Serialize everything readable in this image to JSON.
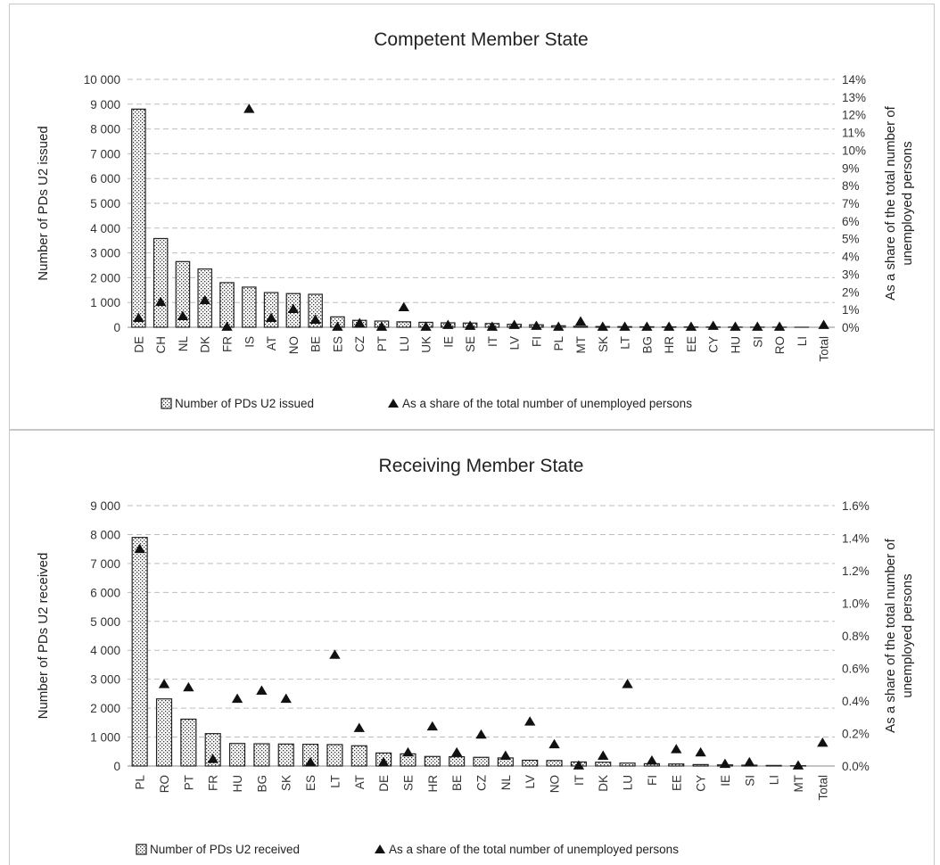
{
  "chart_data": [
    {
      "type": "bar",
      "title": "Competent Member State",
      "ylabel": "Number of PDs U2 issued",
      "y2label_lines": [
        "As a share of the total number of",
        "unemployed persons"
      ],
      "categories": [
        "DE",
        "CH",
        "NL",
        "DK",
        "FR",
        "IS",
        "AT",
        "NO",
        "BE",
        "ES",
        "CZ",
        "PT",
        "LU",
        "UK",
        "IE",
        "SE",
        "IT",
        "LV",
        "FI",
        "PL",
        "MT",
        "SK",
        "LT",
        "BG",
        "HR",
        "EE",
        "CY",
        "HU",
        "SI",
        "RO",
        "LI",
        "Total"
      ],
      "series": [
        {
          "name": "Number of PDs U2 issued",
          "type": "bar",
          "axis": "left",
          "values": [
            8800,
            3580,
            2650,
            2350,
            1800,
            1620,
            1400,
            1360,
            1330,
            420,
            280,
            250,
            220,
            200,
            180,
            170,
            150,
            120,
            100,
            60,
            40,
            30,
            25,
            20,
            15,
            12,
            10,
            8,
            6,
            4,
            2,
            0
          ]
        },
        {
          "name": "As a share of the total number of unemployed persons",
          "type": "scatter",
          "axis": "right",
          "values": [
            0.5,
            1.4,
            0.6,
            1.5,
            0.0,
            12.3,
            0.5,
            1.0,
            0.4,
            0.0,
            0.2,
            0.0,
            1.1,
            0.0,
            0.1,
            0.05,
            0.0,
            0.1,
            0.05,
            0.0,
            0.3,
            0.0,
            0.0,
            0.0,
            0.0,
            0.0,
            0.05,
            0.0,
            0.0,
            0.0,
            null,
            0.1
          ]
        }
      ],
      "ylim": [
        0,
        10000
      ],
      "y2lim": [
        0,
        14
      ],
      "yticks": [
        "0",
        "1 000",
        "2 000",
        "3 000",
        "4 000",
        "5 000",
        "6 000",
        "7 000",
        "8 000",
        "9 000",
        "10 000"
      ],
      "y2ticks": [
        "0%",
        "1%",
        "2%",
        "3%",
        "4%",
        "5%",
        "6%",
        "7%",
        "8%",
        "9%",
        "10%",
        "11%",
        "12%",
        "13%",
        "14%"
      ],
      "grid": true,
      "legend_position": "bottom"
    },
    {
      "type": "bar",
      "title": "Receiving Member State",
      "ylabel": "Number of PDs U2 received",
      "y2label_lines": [
        "As a share of the total number of",
        "unemployed persons"
      ],
      "categories": [
        "PL",
        "RO",
        "PT",
        "FR",
        "HU",
        "BG",
        "SK",
        "ES",
        "LT",
        "AT",
        "DE",
        "SE",
        "HR",
        "BE",
        "CZ",
        "NL",
        "LV",
        "NO",
        "IT",
        "DK",
        "LU",
        "FI",
        "EE",
        "CY",
        "IE",
        "SI",
        "LI",
        "MT",
        "Total"
      ],
      "series": [
        {
          "name": "Number of PDs U2 received",
          "type": "bar",
          "axis": "left",
          "values": [
            7900,
            2320,
            1620,
            1120,
            780,
            770,
            760,
            750,
            740,
            700,
            450,
            420,
            330,
            320,
            300,
            280,
            200,
            190,
            140,
            130,
            100,
            80,
            70,
            50,
            40,
            30,
            20,
            10,
            0
          ]
        },
        {
          "name": "As a share of the total number of unemployed persons",
          "type": "scatter",
          "axis": "right",
          "values": [
            1.33,
            0.5,
            0.48,
            0.04,
            0.41,
            0.46,
            0.41,
            0.02,
            0.68,
            0.23,
            0.02,
            0.08,
            0.24,
            0.08,
            0.19,
            0.06,
            0.27,
            0.13,
            0.0,
            0.06,
            0.5,
            0.03,
            0.1,
            0.08,
            0.01,
            0.02,
            null,
            0.0,
            0.14
          ]
        }
      ],
      "ylim": [
        0,
        9000
      ],
      "y2lim": [
        0,
        1.6
      ],
      "yticks": [
        "0",
        "1 000",
        "2 000",
        "3 000",
        "4 000",
        "5 000",
        "6 000",
        "7 000",
        "8 000",
        "9 000"
      ],
      "y2ticks": [
        "0.0%",
        "0.2%",
        "0.4%",
        "0.6%",
        "0.8%",
        "1.0%",
        "1.2%",
        "1.4%",
        "1.6%"
      ],
      "grid": true,
      "legend_position": "bottom"
    }
  ]
}
